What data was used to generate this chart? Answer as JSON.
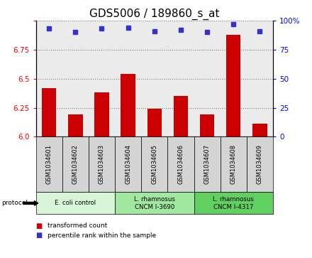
{
  "title": "GDS5006 / 189860_s_at",
  "samples": [
    "GSM1034601",
    "GSM1034602",
    "GSM1034603",
    "GSM1034604",
    "GSM1034605",
    "GSM1034606",
    "GSM1034607",
    "GSM1034608",
    "GSM1034609"
  ],
  "transformed_counts": [
    6.42,
    6.19,
    6.38,
    6.54,
    6.24,
    6.35,
    6.19,
    6.88,
    6.11
  ],
  "percentile_ranks": [
    93,
    90,
    93,
    94,
    91,
    92,
    90,
    97,
    91
  ],
  "ylim_left": [
    6.0,
    7.0
  ],
  "ylim_right": [
    0,
    100
  ],
  "yticks_left": [
    6.0,
    6.25,
    6.5,
    6.75,
    7.0
  ],
  "yticks_right": [
    0,
    25,
    50,
    75,
    100
  ],
  "bar_color": "#cc0000",
  "dot_color": "#3333cc",
  "bg_color_plot": "#ebebeb",
  "groups": [
    {
      "label": "E. coli control",
      "start": 0,
      "end": 3,
      "color": "#d8f5d8"
    },
    {
      "label": "L. rhamnosus\nCNCM I-3690",
      "start": 3,
      "end": 6,
      "color": "#a0e8a0"
    },
    {
      "label": "L. rhamnosus\nCNCM I-4317",
      "start": 6,
      "end": 9,
      "color": "#60d060"
    }
  ],
  "legend_bar_label": "transformed count",
  "legend_dot_label": "percentile rank within the sample",
  "protocol_label": "protocol",
  "title_fontsize": 11,
  "tick_fontsize": 7.5,
  "label_fontsize": 7
}
